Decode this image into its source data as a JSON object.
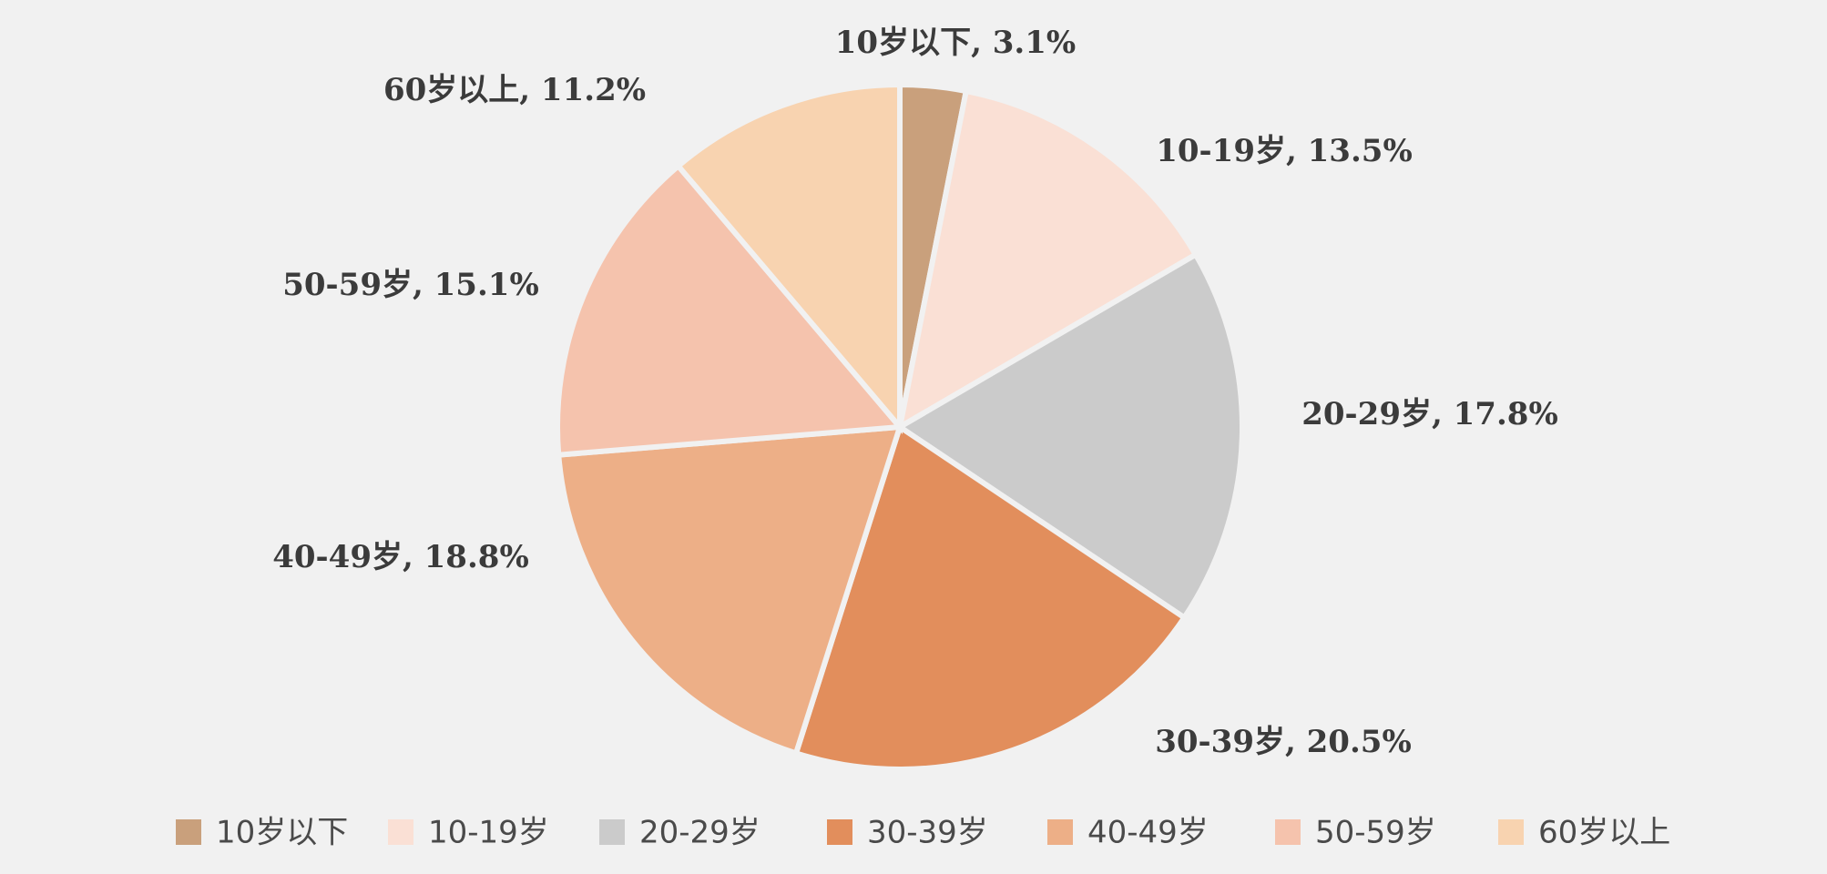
{
  "chart_data": {
    "type": "pie",
    "categories": [
      "10岁以下",
      "10-19岁",
      "20-29岁",
      "30-39岁",
      "40-49岁",
      "50-59岁",
      "60岁以上"
    ],
    "values": [
      3.1,
      13.5,
      17.8,
      20.5,
      18.8,
      15.1,
      11.2
    ],
    "unit": "%",
    "data_labels": [
      "10岁以下, 3.1%",
      "10-19岁, 13.5%",
      "20-29岁, 17.8%",
      "30-39岁, 20.5%",
      "40-49岁, 18.8%",
      "50-59岁, 15.1%",
      "60岁以上, 11.2%"
    ],
    "colors": [
      "#c9a07c",
      "#fae0d5",
      "#cbcbcb",
      "#e28e5c",
      "#edaf87",
      "#f5c3ad",
      "#f8d3b0"
    ],
    "start_angle": "12 o'clock",
    "direction": "clockwise",
    "legend_position": "bottom",
    "title": ""
  }
}
